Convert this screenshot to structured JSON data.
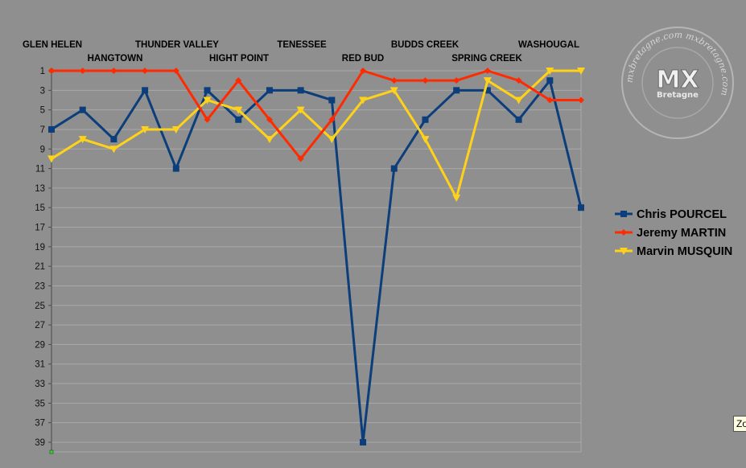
{
  "chart_data": {
    "type": "line",
    "categories": [
      "GLEN HELEN",
      "GLEN HELEN",
      "HANGTOWN",
      "HANGTOWN",
      "THUNDER VALLEY",
      "THUNDER VALLEY",
      "HIGHT POINT",
      "HIGHT POINT",
      "TENESSEE",
      "TENESSEE",
      "RED BUD",
      "RED BUD",
      "BUDDS CREEK",
      "BUDDS CREEK",
      "SPRING CREEK",
      "SPRING CREEK",
      "WASHOUGAL",
      "WASHOUGAL"
    ],
    "venue_labels": [
      "GLEN HELEN",
      "HANGTOWN",
      "THUNDER VALLEY",
      "HIGHT POINT",
      "TENESSEE",
      "RED BUD",
      "BUDDS CREEK",
      "SPRING CREEK",
      "WASHOUGAL"
    ],
    "series": [
      {
        "name": "Chris POURCEL",
        "color": "#0b3e7a",
        "marker": "square",
        "values": [
          7,
          5,
          8,
          3,
          11,
          3,
          6,
          3,
          3,
          4,
          39,
          11,
          6,
          3,
          3,
          6,
          2,
          15
        ]
      },
      {
        "name": "Jeremy MARTIN",
        "color": "#ff2a00",
        "marker": "diamond",
        "values": [
          1,
          1,
          1,
          1,
          1,
          6,
          2,
          6,
          10,
          6,
          1,
          2,
          2,
          2,
          1,
          2,
          4,
          4
        ]
      },
      {
        "name": "Marvin MUSQUIN",
        "color": "#ffd21a",
        "marker": "triangle-down",
        "values": [
          10,
          8,
          9,
          7,
          7,
          4,
          5,
          8,
          5,
          8,
          4,
          3,
          8,
          14,
          2,
          4,
          1,
          1
        ]
      }
    ],
    "y_ticks": [
      "1",
      "3",
      "5",
      "7",
      "9",
      "11",
      "13",
      "15",
      "17",
      "19",
      "21",
      "23",
      "25",
      "27",
      "29",
      "31",
      "33",
      "35",
      "37",
      "39"
    ],
    "ylim": [
      1,
      39
    ],
    "y_reversed": true,
    "grid": true,
    "legend_position": "right"
  },
  "watermark": {
    "logo_text": "MX",
    "sub_text": "Bretagne",
    "ring_text": "mxbretagne.com"
  },
  "tooltip": {
    "text": "Zo"
  }
}
